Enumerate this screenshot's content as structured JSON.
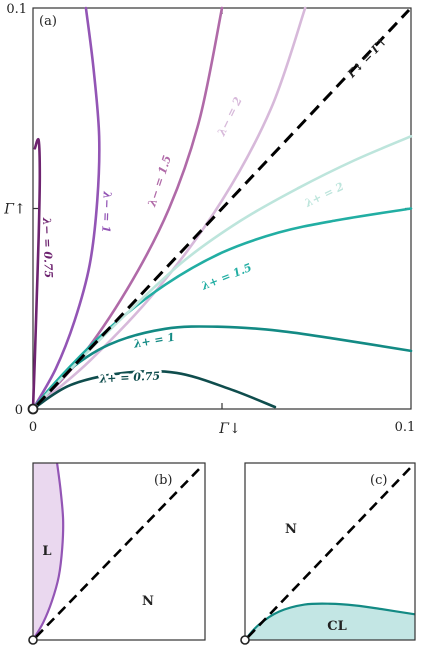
{
  "chart_data": [
    {
      "type": "line",
      "panel": "(a)",
      "xlabel": "Γ↓",
      "ylabel": "Γ↑",
      "xlim": [
        0,
        0.1
      ],
      "ylim": [
        0,
        0.1
      ],
      "x_ticks": [
        "0",
        "0.1"
      ],
      "y_ticks": [
        "0",
        "0.1"
      ],
      "diagonal": {
        "label": "Γ↓ = Γ↑",
        "x": [
          0,
          0.1
        ],
        "y": [
          0,
          0.1
        ],
        "color": "#000000"
      },
      "series": [
        {
          "name": "λ− = 0.75",
          "color": "#6e2470",
          "x": [
            0,
            0.0005,
            0.001,
            0.0015,
            0.0018,
            0.0015,
            0.0005
          ],
          "y": [
            0,
            0.013,
            0.028,
            0.043,
            0.058,
            0.067,
            0.065
          ]
        },
        {
          "name": "λ− = 1",
          "color": "#9355b5",
          "x": [
            0,
            0.006,
            0.011,
            0.015,
            0.017,
            0.0175,
            0.016,
            0.014
          ],
          "y": [
            0,
            0.01,
            0.022,
            0.036,
            0.052,
            0.068,
            0.085,
            0.1
          ]
        },
        {
          "name": "λ− = 1.5",
          "color": "#b06aa8",
          "x": [
            0,
            0.012,
            0.025,
            0.036,
            0.044,
            0.05
          ],
          "y": [
            0,
            0.012,
            0.03,
            0.05,
            0.072,
            0.1
          ]
        },
        {
          "name": "λ− = 2",
          "color": "#d7b9da",
          "x": [
            0,
            0.015,
            0.033,
            0.05,
            0.063,
            0.072
          ],
          "y": [
            0,
            0.012,
            0.03,
            0.052,
            0.075,
            0.1
          ]
        },
        {
          "name": "λ+ = 0.75",
          "color": "#0f4d4d",
          "x": [
            0,
            0.01,
            0.024,
            0.038,
            0.052,
            0.064
          ],
          "y": [
            0,
            0.006,
            0.009,
            0.009,
            0.005,
            0.0005
          ]
        },
        {
          "name": "λ+ = 1",
          "color": "#138a84",
          "x": [
            0,
            0.008,
            0.02,
            0.035,
            0.05,
            0.065,
            0.08,
            0.1
          ],
          "y": [
            0,
            0.0085,
            0.016,
            0.02,
            0.0205,
            0.0195,
            0.0175,
            0.0145
          ]
        },
        {
          "name": "λ+ = 1.5",
          "color": "#22aea3",
          "x": [
            0,
            0.008,
            0.02,
            0.035,
            0.05,
            0.065,
            0.08,
            0.1
          ],
          "y": [
            0,
            0.0088,
            0.02,
            0.031,
            0.039,
            0.044,
            0.047,
            0.05
          ]
        },
        {
          "name": "λ+ = 2",
          "color": "#bde5dc",
          "x": [
            0,
            0.01,
            0.025,
            0.04,
            0.055,
            0.07,
            0.085,
            0.1
          ],
          "y": [
            0,
            0.01,
            0.024,
            0.037,
            0.047,
            0.055,
            0.062,
            0.068
          ]
        }
      ]
    },
    {
      "type": "area",
      "panel": "(b)",
      "xlim": [
        0,
        0.1
      ],
      "ylim": [
        0,
        0.1
      ],
      "diagonal": {
        "x": [
          0,
          0.1
        ],
        "y": [
          0,
          0.1
        ],
        "color": "#000000"
      },
      "boundary": {
        "color": "#9355b5",
        "fill": "#ead8ef",
        "x": [
          0,
          0.006,
          0.011,
          0.015,
          0.017,
          0.0175,
          0.016,
          0.014
        ],
        "y": [
          0,
          0.01,
          0.022,
          0.036,
          0.052,
          0.068,
          0.085,
          0.1
        ]
      },
      "regions": [
        {
          "label": "L"
        },
        {
          "label": "N"
        }
      ]
    },
    {
      "type": "area",
      "panel": "(c)",
      "xlim": [
        0,
        0.1
      ],
      "ylim": [
        0,
        0.1
      ],
      "diagonal": {
        "x": [
          0,
          0.1
        ],
        "y": [
          0,
          0.1
        ],
        "color": "#000000"
      },
      "boundary": {
        "color": "#138a84",
        "fill": "#c3e6e4",
        "x": [
          0,
          0.008,
          0.02,
          0.035,
          0.05,
          0.065,
          0.08,
          0.1
        ],
        "y": [
          0,
          0.0085,
          0.016,
          0.02,
          0.0205,
          0.0195,
          0.0175,
          0.0145
        ]
      },
      "regions": [
        {
          "label": "N"
        },
        {
          "label": "CL"
        }
      ]
    }
  ]
}
